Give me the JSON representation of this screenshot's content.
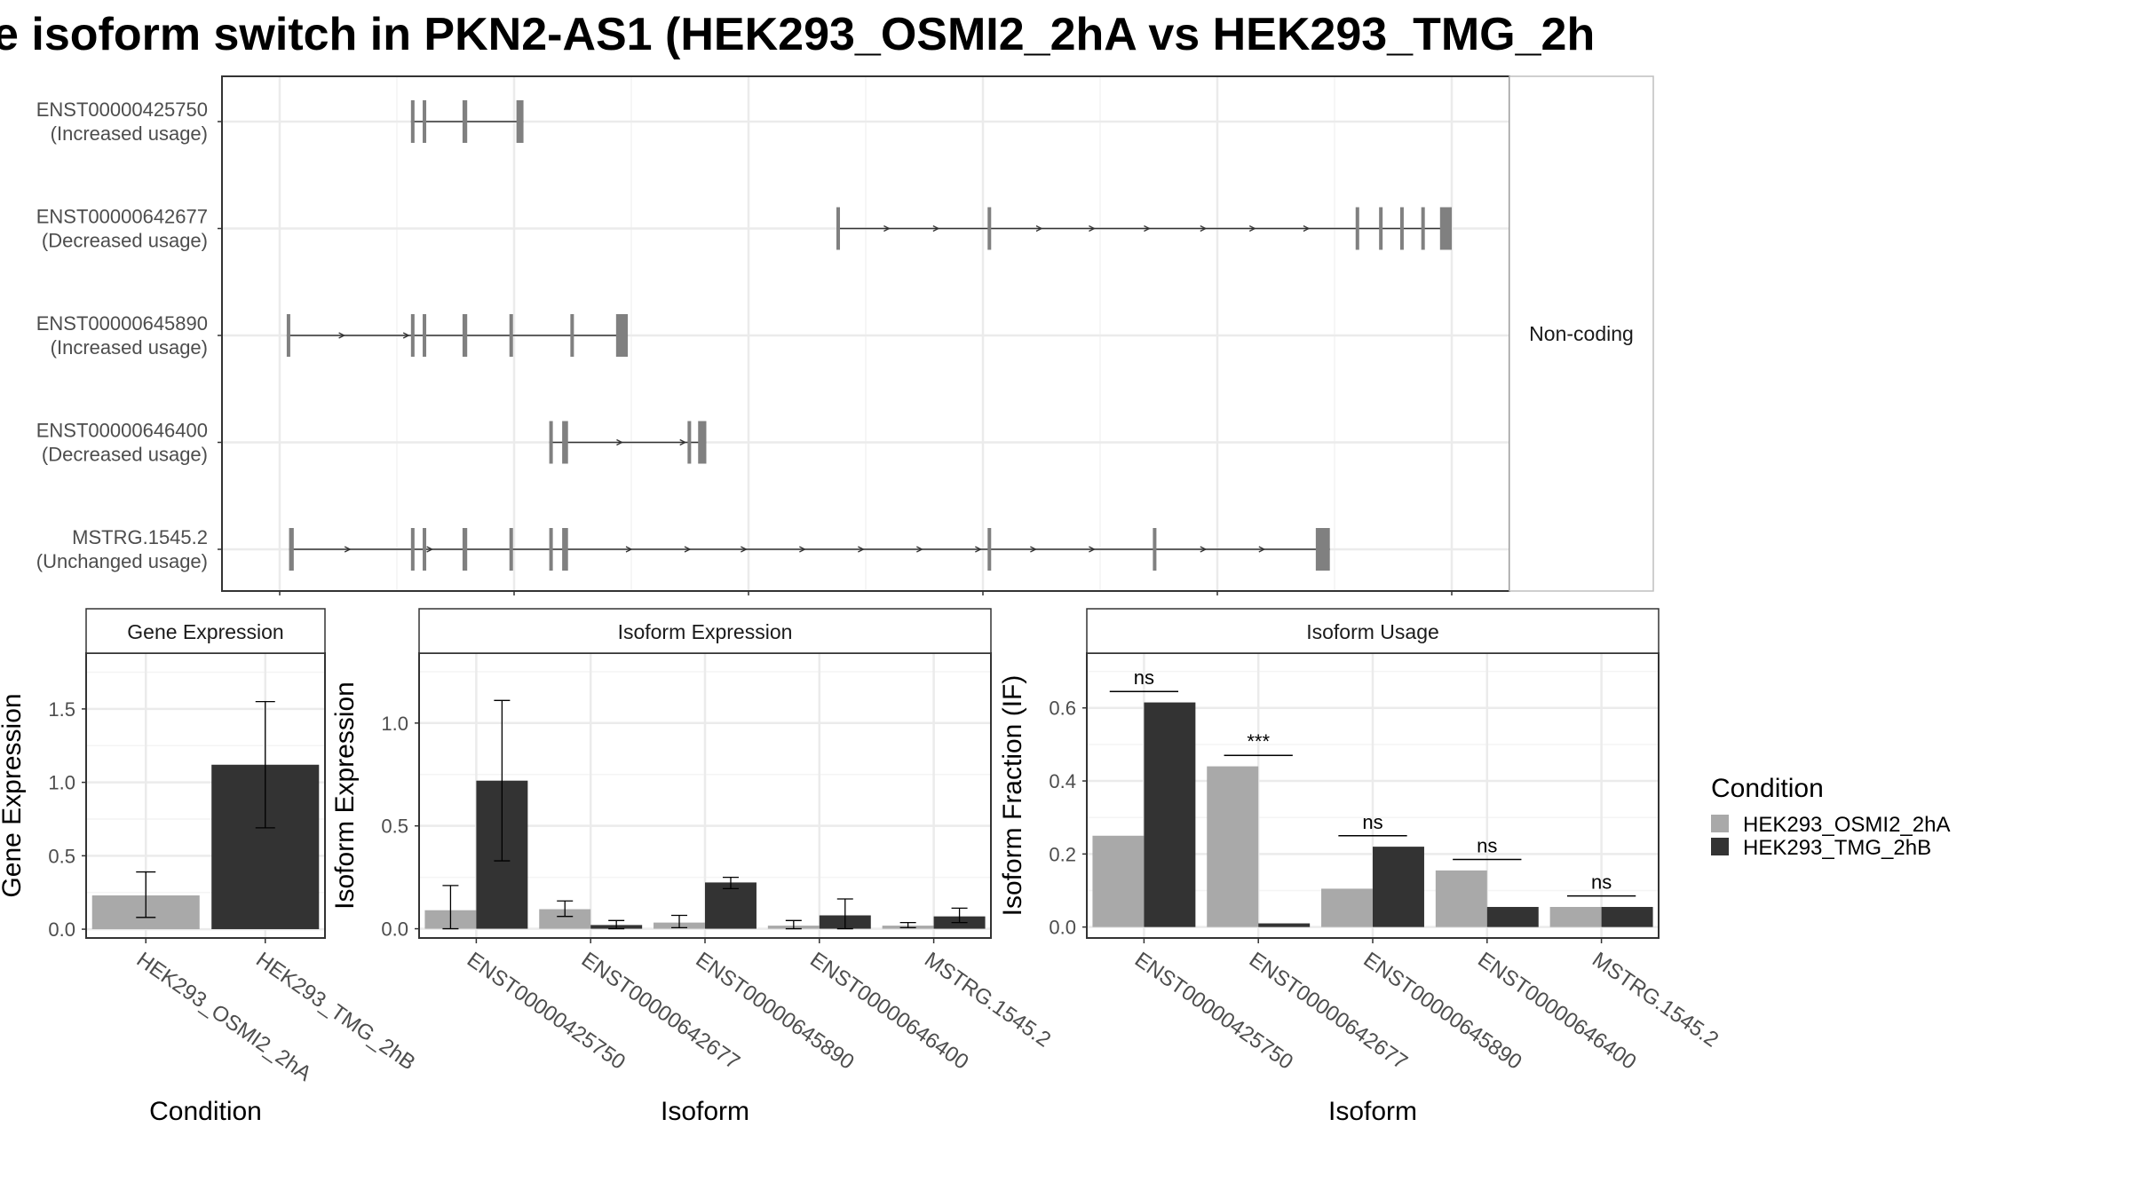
{
  "title": "e isoform switch in PKN2-AS1 (HEK293_OSMI2_2hA vs HEK293_TMG_2h",
  "colors": {
    "condition_a": "#a9a9a9",
    "condition_b": "#333333",
    "exon": "#808080",
    "grid": "#ebebeb",
    "strip_bg": "#ffffff",
    "panel_border": "#333333"
  },
  "chart_data": [
    {
      "type": "transcript-structure",
      "facet_label": "Non-coding",
      "grid": true,
      "xlim": [
        0,
        1000
      ],
      "transcripts": [
        {
          "id": "ENST00000425750",
          "usage": "(Increased usage)",
          "exons": [
            [
              112,
              115
            ],
            [
              122,
              125
            ],
            [
              156,
              160
            ],
            [
              202,
              208
            ]
          ],
          "arrows": []
        },
        {
          "id": "ENST00000642677",
          "usage": "(Decreased usage)",
          "exons": [
            [
              475,
              478
            ],
            [
              604,
              606
            ],
            [
              918,
              921
            ],
            [
              938,
              940
            ],
            [
              956,
              958
            ],
            [
              974,
              976
            ],
            [
              990,
              1000
            ]
          ],
          "arrows": [
            520,
            562,
            650,
            695,
            742,
            790,
            832,
            878
          ]
        },
        {
          "id": "ENST00000645890",
          "usage": "(Increased usage)",
          "exons": [
            [
              6,
              8
            ],
            [
              112,
              115
            ],
            [
              122,
              125
            ],
            [
              156,
              160
            ],
            [
              196,
              199
            ],
            [
              248,
              251
            ],
            [
              287,
              297
            ]
          ],
          "arrows": [
            55,
            110
          ]
        },
        {
          "id": "ENST00000646400",
          "usage": "(Decreased usage)",
          "exons": [
            [
              230,
              233
            ],
            [
              241,
              246
            ],
            [
              348,
              350
            ],
            [
              357,
              364
            ]
          ],
          "arrows": [
            292,
            346
          ]
        },
        {
          "id": "MSTRG.1545.2",
          "usage": "(Unchanged usage)",
          "exons": [
            [
              8,
              12
            ],
            [
              112,
              115
            ],
            [
              122,
              125
            ],
            [
              156,
              160
            ],
            [
              196,
              199
            ],
            [
              230,
              233
            ],
            [
              241,
              246
            ],
            [
              604,
              606
            ],
            [
              745,
              747
            ],
            [
              884,
              896
            ]
          ],
          "arrows": [
            60,
            130,
            300,
            350,
            398,
            448,
            498,
            548,
            598,
            645,
            695,
            790,
            840
          ]
        }
      ]
    },
    {
      "type": "bar",
      "strip": "Gene Expression",
      "xlabel": "Condition",
      "ylabel": "Gene Expression",
      "ylim": [
        -0.06,
        1.88
      ],
      "yticks": [
        "0.0",
        "0.5",
        "1.0",
        "1.5"
      ],
      "grid": true,
      "categories": [
        "HEK293_OSMI2_2hA",
        "HEK293_TMG_2hB"
      ],
      "values": [
        0.23,
        1.12
      ],
      "errors": [
        [
          0.08,
          0.39
        ],
        [
          0.69,
          1.55
        ]
      ]
    },
    {
      "type": "bar",
      "strip": "Isoform Expression",
      "xlabel": "Isoform",
      "ylabel": "Isoform Expression",
      "ylim": [
        -0.045,
        1.34
      ],
      "yticks": [
        "0.0",
        "0.5",
        "1.0"
      ],
      "grid": true,
      "categories": [
        "ENST00000425750",
        "ENST00000642677",
        "ENST00000645890",
        "ENST00000646400",
        "MSTRG.1545.2"
      ],
      "series": [
        {
          "name": "HEK293_OSMI2_2hA",
          "values": [
            0.09,
            0.095,
            0.03,
            0.015,
            0.015
          ],
          "errors": [
            [
              0.0,
              0.21
            ],
            [
              0.06,
              0.135
            ],
            [
              0.005,
              0.065
            ],
            [
              0.0,
              0.04
            ],
            [
              0.005,
              0.03
            ]
          ]
        },
        {
          "name": "HEK293_TMG_2hB",
          "values": [
            0.72,
            0.018,
            0.225,
            0.065,
            0.06
          ],
          "errors": [
            [
              0.33,
              1.11
            ],
            [
              0.0,
              0.04
            ],
            [
              0.195,
              0.25
            ],
            [
              0.0,
              0.145
            ],
            [
              0.03,
              0.1
            ]
          ]
        }
      ]
    },
    {
      "type": "bar",
      "strip": "Isoform Usage",
      "xlabel": "Isoform",
      "ylabel": "Isoform Fraction (IF)",
      "ylim": [
        -0.03,
        0.75
      ],
      "yticks": [
        "0.0",
        "0.2",
        "0.4",
        "0.6"
      ],
      "grid": true,
      "categories": [
        "ENST00000425750",
        "ENST00000642677",
        "ENST00000645890",
        "ENST00000646400",
        "MSTRG.1545.2"
      ],
      "series": [
        {
          "name": "HEK293_OSMI2_2hA",
          "values": [
            0.25,
            0.44,
            0.105,
            0.155,
            0.055
          ]
        },
        {
          "name": "HEK293_TMG_2hB",
          "values": [
            0.615,
            0.01,
            0.22,
            0.055,
            0.055
          ]
        }
      ],
      "annotations": [
        {
          "text": "ns",
          "y": 0.645
        },
        {
          "text": "***",
          "y": 0.47
        },
        {
          "text": "ns",
          "y": 0.25
        },
        {
          "text": "ns",
          "y": 0.185
        },
        {
          "text": "ns",
          "y": 0.085
        }
      ]
    }
  ],
  "legend": {
    "title": "Condition",
    "items": [
      "HEK293_OSMI2_2hA",
      "HEK293_TMG_2hB"
    ]
  }
}
